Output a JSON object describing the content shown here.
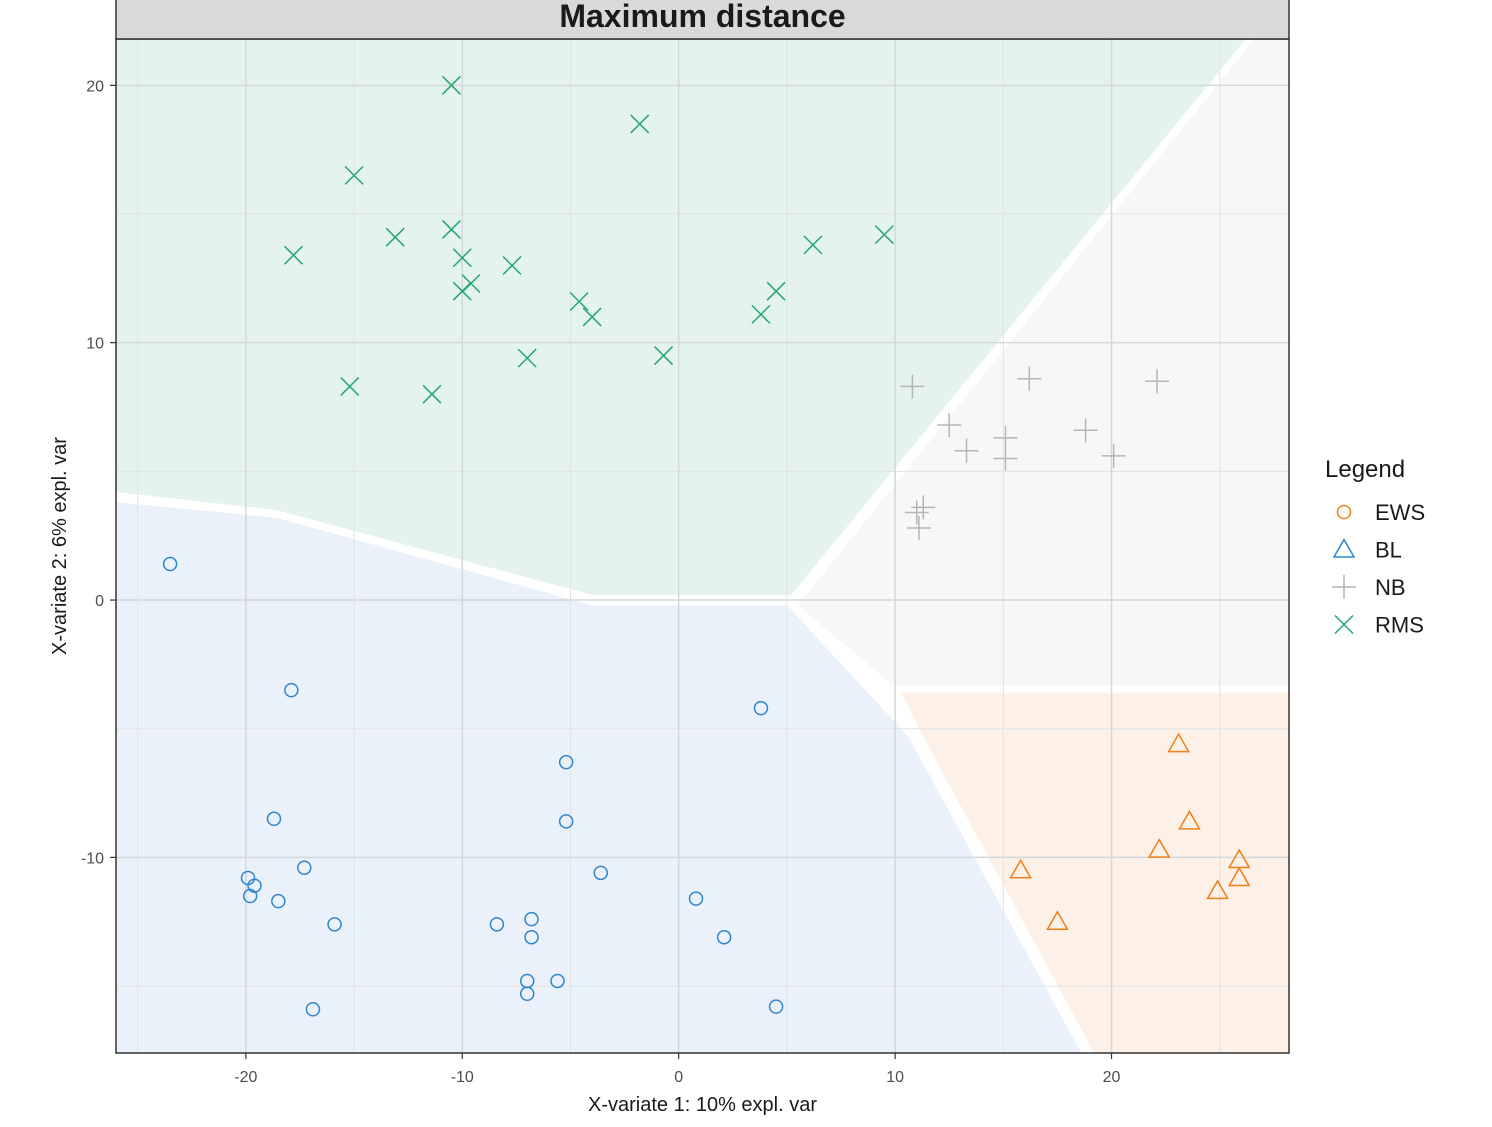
{
  "chart_data": {
    "type": "scatter",
    "title": "Maximum distance",
    "xlabel": "X-variate 1: 10% expl. var",
    "ylabel": "X-variate 2: 6% expl. var",
    "xlim": [
      -26,
      28.2
    ],
    "ylim": [
      -17.6,
      21.8
    ],
    "xticks": [
      -20,
      -10,
      0,
      10,
      20
    ],
    "yticks": [
      -10,
      0,
      10,
      20
    ],
    "grid": true,
    "legend": {
      "title": "Legend",
      "position": "right",
      "entries": [
        {
          "label": "EWS",
          "shape": "circle",
          "color": "#ef7f1a"
        },
        {
          "label": "BL",
          "shape": "triangle",
          "color": "#2f86cc"
        },
        {
          "label": "NB",
          "shape": "plus",
          "color": "#b5b5b5"
        },
        {
          "label": "RMS",
          "shape": "cross",
          "color": "#26a670"
        }
      ]
    },
    "regions": [
      {
        "name": "RMS",
        "color": "#e5f3ef",
        "polygon": [
          [
            -26,
            21.8
          ],
          [
            26.2,
            21.8
          ],
          [
            26.2,
            21.8
          ],
          [
            5.2,
            0.2
          ],
          [
            -4,
            0.2
          ],
          [
            -18.6,
            3.5
          ],
          [
            -26,
            4.2
          ]
        ]
      },
      {
        "name": "NB",
        "color": "#f7f7f7",
        "polygon": [
          [
            26.6,
            21.8
          ],
          [
            28.2,
            21.8
          ],
          [
            28.2,
            -3.3
          ],
          [
            9.9,
            -3.3
          ],
          [
            5.5,
            -0.2
          ]
        ]
      },
      {
        "name": "BL",
        "color": "#eaf1fa",
        "polygon": [
          [
            -26,
            3.8
          ],
          [
            -18.6,
            3.2
          ],
          [
            -4,
            -0.2
          ],
          [
            5,
            -0.2
          ],
          [
            10.6,
            -5.3
          ],
          [
            18.6,
            -17.6
          ],
          [
            -26,
            -17.6
          ]
        ]
      },
      {
        "name": "EWS",
        "color": "#fdf0e6",
        "polygon": [
          [
            10.3,
            -3.6
          ],
          [
            28.2,
            -3.6
          ],
          [
            28.2,
            -17.6
          ],
          [
            19.2,
            -17.6
          ],
          [
            11.3,
            -5.3
          ]
        ]
      }
    ],
    "series": [
      {
        "name": "BL",
        "marker": "circle",
        "color": "#2f86cc",
        "points": [
          [
            -23.5,
            1.4
          ],
          [
            -17.9,
            -3.5
          ],
          [
            3.8,
            -4.2
          ],
          [
            -5.2,
            -6.3
          ],
          [
            -18.7,
            -8.5
          ],
          [
            -5.2,
            -8.6
          ],
          [
            -17.3,
            -10.4
          ],
          [
            -3.6,
            -10.6
          ],
          [
            -19.9,
            -10.8
          ],
          [
            -19.6,
            -11.1
          ],
          [
            -19.8,
            -11.5
          ],
          [
            -18.5,
            -11.7
          ],
          [
            0.8,
            -11.6
          ],
          [
            -15.9,
            -12.6
          ],
          [
            -8.4,
            -12.6
          ],
          [
            -6.8,
            -12.4
          ],
          [
            -6.8,
            -13.1
          ],
          [
            2.1,
            -13.1
          ],
          [
            -7,
            -14.8
          ],
          [
            -5.6,
            -14.8
          ],
          [
            -7,
            -15.3
          ],
          [
            -16.9,
            -15.9
          ],
          [
            4.5,
            -15.8
          ]
        ]
      },
      {
        "name": "EWS",
        "marker": "triangle",
        "color": "#ef7f1a",
        "points": [
          [
            23.1,
            -5.6
          ],
          [
            23.6,
            -8.6
          ],
          [
            22.2,
            -9.7
          ],
          [
            25.9,
            -10.1
          ],
          [
            25.9,
            -10.8
          ],
          [
            15.8,
            -10.5
          ],
          [
            24.9,
            -11.3
          ],
          [
            17.5,
            -12.5
          ]
        ]
      },
      {
        "name": "NB",
        "marker": "plus",
        "color": "#b5b5b5",
        "points": [
          [
            10.8,
            8.3
          ],
          [
            16.2,
            8.6
          ],
          [
            22.1,
            8.5
          ],
          [
            12.5,
            6.8
          ],
          [
            18.8,
            6.6
          ],
          [
            15.1,
            6.3
          ],
          [
            13.3,
            5.8
          ],
          [
            15.1,
            5.5
          ],
          [
            20.1,
            5.6
          ],
          [
            11.3,
            3.6
          ],
          [
            11,
            3.4
          ],
          [
            11.1,
            2.8
          ]
        ]
      },
      {
        "name": "RMS",
        "marker": "cross",
        "color": "#26a670",
        "points": [
          [
            -10.5,
            20
          ],
          [
            -1.8,
            18.5
          ],
          [
            -15,
            16.5
          ],
          [
            -13.1,
            14.1
          ],
          [
            -10.5,
            14.4
          ],
          [
            -17.8,
            13.4
          ],
          [
            -10,
            13.3
          ],
          [
            -7.7,
            13
          ],
          [
            9.5,
            14.2
          ],
          [
            6.2,
            13.8
          ],
          [
            -9.6,
            12.3
          ],
          [
            -10,
            12
          ],
          [
            -4.6,
            11.6
          ],
          [
            -4,
            11
          ],
          [
            3.8,
            11.1
          ],
          [
            4.5,
            12
          ],
          [
            -7,
            9.4
          ],
          [
            -0.7,
            9.5
          ],
          [
            -15.2,
            8.3
          ],
          [
            -11.4,
            8
          ]
        ]
      }
    ]
  }
}
